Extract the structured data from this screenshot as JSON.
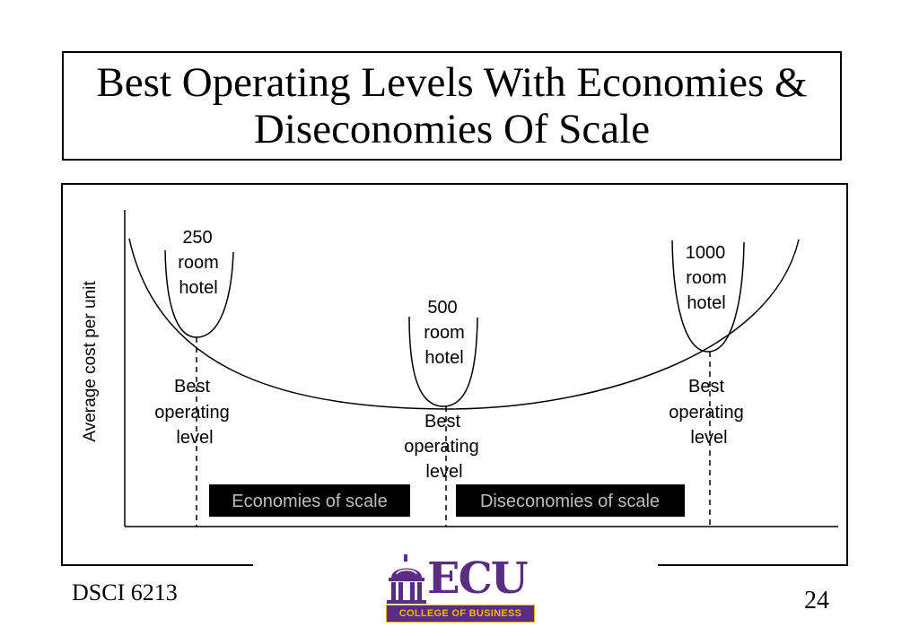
{
  "title": {
    "line1": "Best Operating Levels With Economies &",
    "line2": "Diseconomies Of Scale"
  },
  "diagram": {
    "y_axis_label": "Average cost per unit",
    "hotels": [
      {
        "lines": [
          "250",
          "room",
          "hotel"
        ],
        "best_label": [
          "Best",
          "operating",
          "level"
        ]
      },
      {
        "lines": [
          "500",
          "room",
          "hotel"
        ],
        "best_label": [
          "Best",
          "operating",
          "level"
        ]
      },
      {
        "lines": [
          "1000",
          "room",
          "hotel"
        ],
        "best_label": [
          "Best",
          "operating",
          "level"
        ]
      }
    ],
    "regions": {
      "economies": "Economies of scale",
      "diseconomies": "Diseconomies of scale"
    }
  },
  "footer": {
    "course": "DSCI 6213",
    "page_number": "24"
  },
  "logo": {
    "word": "ECU",
    "subtitle": "COLLEGE OF BUSINESS",
    "primary_color": "#5b2c83",
    "accent_color": "#f2b900",
    "icon": "cupola-icon"
  }
}
